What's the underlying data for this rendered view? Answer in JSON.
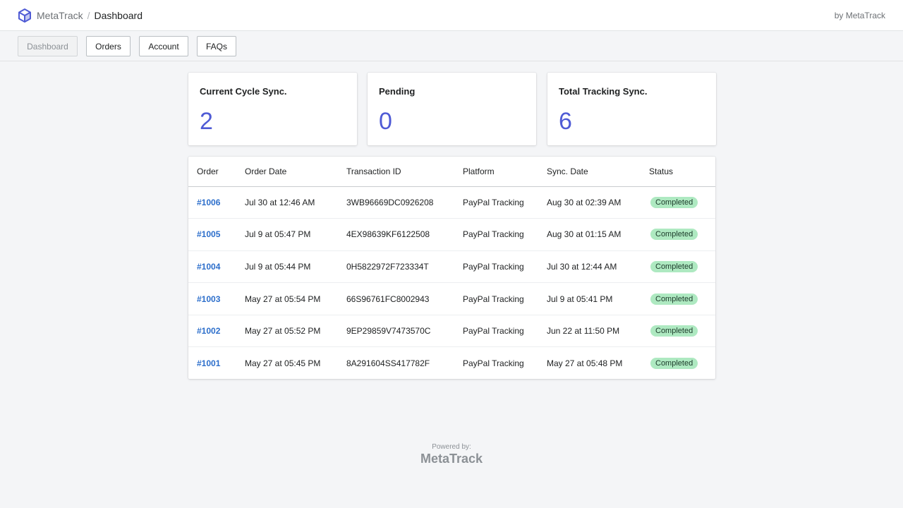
{
  "header": {
    "app_name": "MetaTrack",
    "separator": "/",
    "page_title": "Dashboard",
    "byline": "by MetaTrack"
  },
  "nav": {
    "tabs": [
      {
        "label": "Dashboard",
        "active": true
      },
      {
        "label": "Orders",
        "active": false
      },
      {
        "label": "Account",
        "active": false
      },
      {
        "label": "FAQs",
        "active": false
      }
    ]
  },
  "stats": [
    {
      "title": "Current Cycle Sync.",
      "value": "2"
    },
    {
      "title": "Pending",
      "value": "0"
    },
    {
      "title": "Total Tracking Sync.",
      "value": "6"
    }
  ],
  "table": {
    "headers": [
      "Order",
      "Order Date",
      "Transaction ID",
      "Platform",
      "Sync. Date",
      "Status"
    ],
    "rows": [
      {
        "order": "#1006",
        "order_date": "Jul 30 at 12:46 AM",
        "transaction_id": "3WB96669DC0926208",
        "platform": "PayPal Tracking",
        "sync_date": "Aug 30 at 02:39 AM",
        "status": "Completed"
      },
      {
        "order": "#1005",
        "order_date": "Jul 9 at 05:47 PM",
        "transaction_id": "4EX98639KF6122508",
        "platform": "PayPal Tracking",
        "sync_date": "Aug 30 at 01:15 AM",
        "status": "Completed"
      },
      {
        "order": "#1004",
        "order_date": "Jul 9 at 05:44 PM",
        "transaction_id": "0H5822972F723334T",
        "platform": "PayPal Tracking",
        "sync_date": "Jul 30 at 12:44 AM",
        "status": "Completed"
      },
      {
        "order": "#1003",
        "order_date": "May 27 at 05:54 PM",
        "transaction_id": "66S96761FC8002943",
        "platform": "PayPal Tracking",
        "sync_date": "Jul 9 at 05:41 PM",
        "status": "Completed"
      },
      {
        "order": "#1002",
        "order_date": "May 27 at 05:52 PM",
        "transaction_id": "9EP29859V7473570C",
        "platform": "PayPal Tracking",
        "sync_date": "Jun 22 at 11:50 PM",
        "status": "Completed"
      },
      {
        "order": "#1001",
        "order_date": "May 27 at 05:45 PM",
        "transaction_id": "8A291604SS417782F",
        "platform": "PayPal Tracking",
        "sync_date": "May 27 at 05:48 PM",
        "status": "Completed"
      }
    ]
  },
  "footer": {
    "powered_label": "Powered by:",
    "powered_brand": "MetaTrack"
  },
  "colors": {
    "accent": "#4f5bd5",
    "link": "#2c6ecb",
    "badge_bg": "#aee9c1"
  },
  "icons": {
    "logo": "cube-icon"
  }
}
